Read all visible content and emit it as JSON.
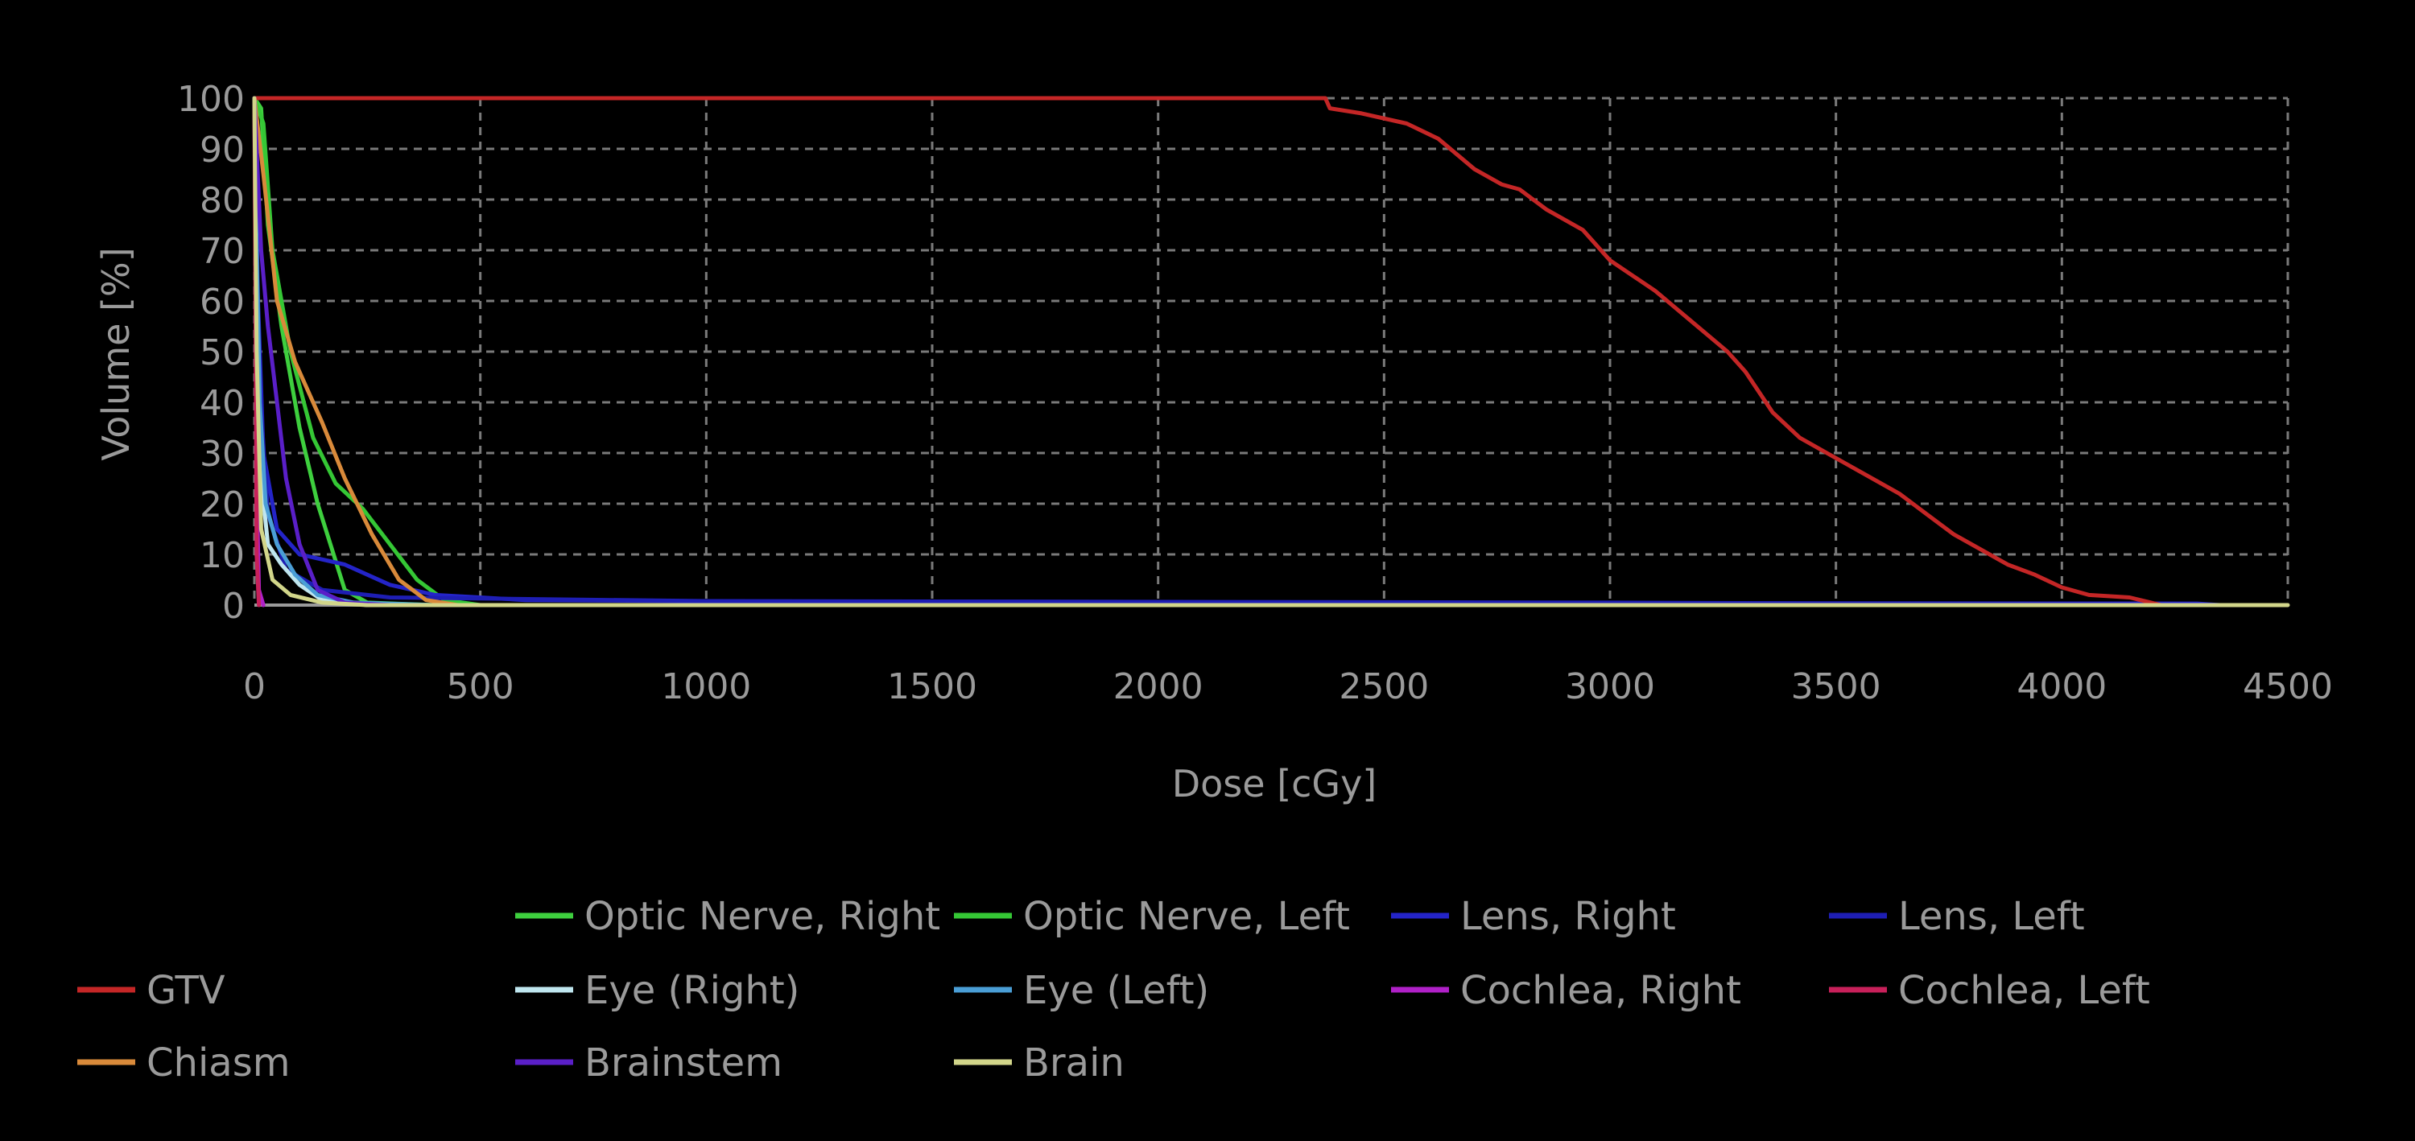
{
  "chart_data": {
    "type": "line",
    "title": "",
    "xlabel": "Dose [cGy]",
    "ylabel": "Volume [%]",
    "xlim": [
      0,
      4500
    ],
    "ylim": [
      0,
      100
    ],
    "x_ticks": [
      0,
      500,
      1000,
      1500,
      2000,
      2500,
      3000,
      3500,
      4000,
      4500
    ],
    "y_ticks": [
      0,
      10,
      20,
      30,
      40,
      50,
      60,
      70,
      80,
      90,
      100
    ],
    "grid": true,
    "legend_position": "bottom",
    "series": [
      {
        "name": "Optic Nerve, Right",
        "color": "#3ecf3e",
        "points": [
          [
            0,
            100
          ],
          [
            15,
            98
          ],
          [
            30,
            75
          ],
          [
            60,
            55
          ],
          [
            100,
            35
          ],
          [
            140,
            20
          ],
          [
            200,
            3
          ],
          [
            250,
            0.5
          ],
          [
            400,
            0
          ]
        ]
      },
      {
        "name": "Optic Nerve, Left",
        "color": "#35c735",
        "points": [
          [
            0,
            100
          ],
          [
            20,
            95
          ],
          [
            40,
            70
          ],
          [
            80,
            50
          ],
          [
            130,
            33
          ],
          [
            180,
            24
          ],
          [
            240,
            19
          ],
          [
            300,
            12
          ],
          [
            360,
            5
          ],
          [
            420,
            1
          ],
          [
            500,
            0
          ]
        ]
      },
      {
        "name": "Lens, Right",
        "color": "#2424c8",
        "points": [
          [
            0,
            100
          ],
          [
            8,
            60
          ],
          [
            20,
            30
          ],
          [
            50,
            15
          ],
          [
            100,
            10
          ],
          [
            200,
            8
          ],
          [
            300,
            4
          ],
          [
            400,
            2
          ],
          [
            600,
            1
          ],
          [
            1500,
            0.5
          ],
          [
            4300,
            0.3
          ],
          [
            4350,
            0
          ]
        ]
      },
      {
        "name": "Lens, Left",
        "color": "#1e1eb4",
        "points": [
          [
            0,
            100
          ],
          [
            10,
            45
          ],
          [
            30,
            18
          ],
          [
            70,
            7
          ],
          [
            150,
            3
          ],
          [
            300,
            1.5
          ],
          [
            1000,
            0.8
          ],
          [
            3000,
            0.5
          ],
          [
            4350,
            0
          ]
        ]
      },
      {
        "name": "GTV",
        "color": "#c42626",
        "points": [
          [
            0,
            100
          ],
          [
            2370,
            100
          ],
          [
            2380,
            98
          ],
          [
            2450,
            97
          ],
          [
            2550,
            95
          ],
          [
            2620,
            92
          ],
          [
            2700,
            86
          ],
          [
            2760,
            83
          ],
          [
            2800,
            82
          ],
          [
            2860,
            78
          ],
          [
            2940,
            74
          ],
          [
            3000,
            68
          ],
          [
            3100,
            62
          ],
          [
            3180,
            56
          ],
          [
            3260,
            50
          ],
          [
            3300,
            46
          ],
          [
            3360,
            38
          ],
          [
            3420,
            33
          ],
          [
            3480,
            30
          ],
          [
            3560,
            26
          ],
          [
            3640,
            22
          ],
          [
            3700,
            18
          ],
          [
            3760,
            14
          ],
          [
            3820,
            11
          ],
          [
            3880,
            8
          ],
          [
            3940,
            6
          ],
          [
            4000,
            3.5
          ],
          [
            4060,
            2
          ],
          [
            4150,
            1.5
          ],
          [
            4220,
            0
          ]
        ]
      },
      {
        "name": "Eye (Right)",
        "color": "#bfe6ef",
        "points": [
          [
            0,
            100
          ],
          [
            6,
            50
          ],
          [
            15,
            25
          ],
          [
            30,
            12
          ],
          [
            60,
            8
          ],
          [
            100,
            4
          ],
          [
            150,
            1
          ],
          [
            250,
            0
          ]
        ]
      },
      {
        "name": "Eye (Left)",
        "color": "#4a9ed6",
        "points": [
          [
            0,
            100
          ],
          [
            5,
            70
          ],
          [
            12,
            40
          ],
          [
            25,
            20
          ],
          [
            50,
            12
          ],
          [
            90,
            6
          ],
          [
            140,
            2
          ],
          [
            220,
            0.5
          ],
          [
            400,
            0
          ],
          [
            4340,
            0
          ]
        ]
      },
      {
        "name": "Cochlea, Right",
        "color": "#b020c8",
        "points": [
          [
            0,
            100
          ],
          [
            3,
            60
          ],
          [
            6,
            20
          ],
          [
            10,
            3
          ],
          [
            20,
            0
          ]
        ]
      },
      {
        "name": "Cochlea, Left",
        "color": "#c8205a",
        "points": [
          [
            0,
            100
          ],
          [
            3,
            50
          ],
          [
            5,
            10
          ],
          [
            10,
            0
          ]
        ]
      },
      {
        "name": "Chiasm",
        "color": "#d98a3a",
        "points": [
          [
            0,
            100
          ],
          [
            20,
            85
          ],
          [
            50,
            60
          ],
          [
            90,
            48
          ],
          [
            150,
            36
          ],
          [
            200,
            25
          ],
          [
            260,
            14
          ],
          [
            320,
            5
          ],
          [
            380,
            1
          ],
          [
            450,
            0
          ]
        ]
      },
      {
        "name": "Brainstem",
        "color": "#5a1fc8",
        "points": [
          [
            0,
            100
          ],
          [
            15,
            70
          ],
          [
            30,
            55
          ],
          [
            50,
            40
          ],
          [
            70,
            25
          ],
          [
            100,
            12
          ],
          [
            140,
            3
          ],
          [
            200,
            0.5
          ],
          [
            300,
            0
          ]
        ]
      },
      {
        "name": "Brain",
        "color": "#d2d68a",
        "points": [
          [
            0,
            100
          ],
          [
            5,
            50
          ],
          [
            15,
            15
          ],
          [
            40,
            5
          ],
          [
            80,
            2
          ],
          [
            150,
            0.5
          ],
          [
            250,
            0
          ],
          [
            4500,
            0
          ]
        ]
      }
    ],
    "legend_rows": [
      [
        "",
        "Optic Nerve, Right",
        "Optic Nerve, Left",
        "Lens, Right",
        "Lens, Left"
      ],
      [
        "GTV",
        "Eye (Right)",
        "Eye (Left)",
        "Cochlea, Right",
        "Cochlea, Left"
      ],
      [
        "Chiasm",
        "Brainstem",
        "Brain",
        "",
        ""
      ]
    ]
  }
}
